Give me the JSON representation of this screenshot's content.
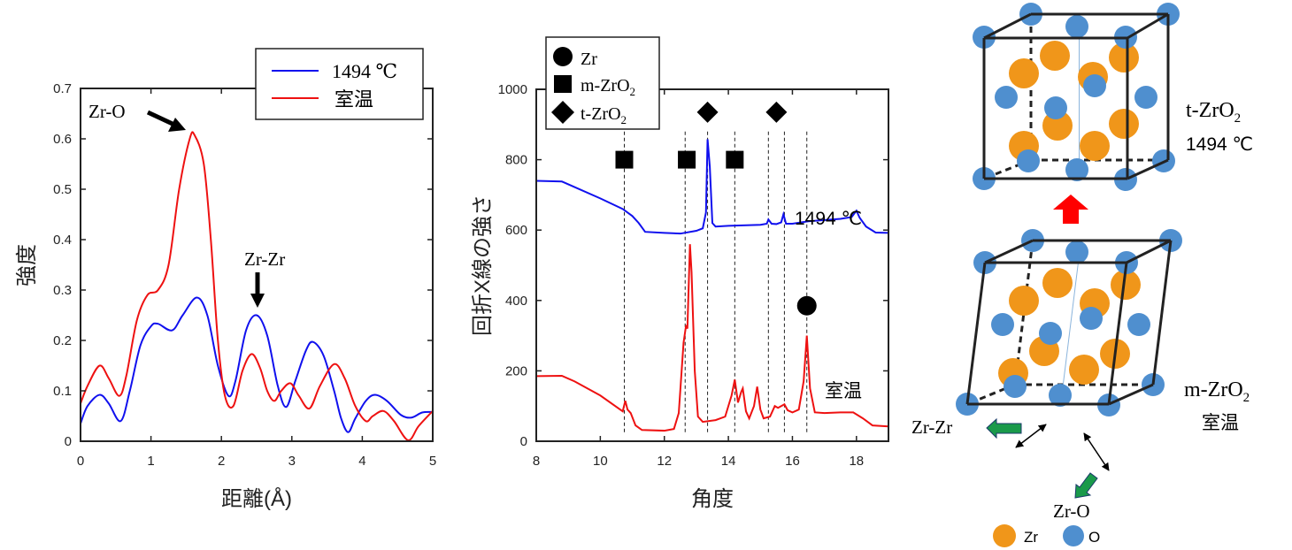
{
  "colors": {
    "high_temp": "#1010ee",
    "room_temp": "#ee1111",
    "zr_atom": "#f0961a",
    "o_atom": "#4f8fcf",
    "phase_arrow": "#ff0000",
    "shift_arrow": "#1a9a4a"
  },
  "chart_data": [
    {
      "type": "line",
      "xlabel": "距離(Å)",
      "ylabel": "強度",
      "xlim": [
        0,
        5
      ],
      "ylim": [
        0,
        0.7
      ],
      "xticks": [
        "0",
        "1",
        "2",
        "3",
        "4",
        "5"
      ],
      "yticks": [
        "0",
        "0.1",
        "0.2",
        "0.3",
        "0.4",
        "0.5",
        "0.6",
        "0.7"
      ],
      "grid": false,
      "legend": {
        "placement": "top-right",
        "entries": [
          "1494 ℃",
          "室温"
        ]
      },
      "annotations": [
        {
          "text": "Zr-O",
          "x": 1.62,
          "y": 0.607
        },
        {
          "text": "Zr-Zr",
          "x": 2.5,
          "y": 0.25
        }
      ],
      "series": [
        {
          "name": "1494 ℃",
          "color": "#1010ee",
          "x": [
            0,
            0.1,
            0.27,
            0.4,
            0.57,
            0.7,
            0.85,
            1.0,
            1.1,
            1.3,
            1.45,
            1.65,
            1.8,
            1.95,
            2.1,
            2.2,
            2.35,
            2.5,
            2.65,
            2.8,
            2.92,
            3.05,
            3.2,
            3.3,
            3.45,
            3.6,
            3.7,
            3.8,
            3.9,
            4.05,
            4.18,
            4.35,
            4.55,
            4.7,
            4.85,
            5
          ],
          "y": [
            0.035,
            0.07,
            0.092,
            0.075,
            0.04,
            0.1,
            0.19,
            0.228,
            0.233,
            0.22,
            0.25,
            0.285,
            0.25,
            0.15,
            0.09,
            0.12,
            0.22,
            0.25,
            0.21,
            0.11,
            0.068,
            0.12,
            0.18,
            0.197,
            0.17,
            0.1,
            0.045,
            0.018,
            0.045,
            0.08,
            0.092,
            0.08,
            0.052,
            0.047,
            0.057,
            0.058
          ]
        },
        {
          "name": "室温",
          "color": "#ee1111",
          "x": [
            0,
            0.1,
            0.27,
            0.4,
            0.55,
            0.65,
            0.8,
            0.95,
            1.1,
            1.25,
            1.4,
            1.55,
            1.62,
            1.75,
            1.85,
            1.95,
            2.05,
            2.17,
            2.3,
            2.43,
            2.55,
            2.65,
            2.75,
            2.85,
            2.98,
            3.1,
            3.25,
            3.4,
            3.6,
            3.75,
            3.9,
            4.05,
            4.15,
            4.3,
            4.45,
            4.65,
            4.8,
            5
          ],
          "y": [
            0.075,
            0.11,
            0.15,
            0.125,
            0.09,
            0.13,
            0.24,
            0.29,
            0.3,
            0.35,
            0.5,
            0.6,
            0.607,
            0.55,
            0.4,
            0.2,
            0.09,
            0.07,
            0.14,
            0.173,
            0.145,
            0.1,
            0.08,
            0.1,
            0.115,
            0.09,
            0.065,
            0.11,
            0.153,
            0.125,
            0.07,
            0.04,
            0.05,
            0.06,
            0.04,
            0.002,
            0.03,
            0.06
          ]
        }
      ]
    },
    {
      "type": "line",
      "xlabel": "角度",
      "ylabel": "回折X線の強さ",
      "xlim": [
        8,
        19
      ],
      "ylim": [
        0,
        1000
      ],
      "xticks": [
        "8",
        "10",
        "12",
        "14",
        "16",
        "18"
      ],
      "yticks": [
        "0",
        "200",
        "400",
        "600",
        "800",
        "1000"
      ],
      "grid": false,
      "legend": {
        "placement": "top-left",
        "entries": [
          {
            "marker": "circle",
            "text": "Zr",
            "sub": ""
          },
          {
            "marker": "square",
            "text": "m-ZrO",
            "sub": "2"
          },
          {
            "marker": "diamond",
            "text": "t-ZrO",
            "sub": "2"
          }
        ]
      },
      "series_labels": [
        {
          "text": "1494 ℃",
          "x": 17.6,
          "y": 680
        },
        {
          "text": "室温",
          "x": 17.9,
          "y": 150
        }
      ],
      "peak_markers": [
        {
          "marker": "square",
          "x": 10.75,
          "y": 800
        },
        {
          "marker": "square",
          "x": 12.7,
          "y": 800
        },
        {
          "marker": "square",
          "x": 14.2,
          "y": 800
        },
        {
          "marker": "diamond",
          "x": 13.35,
          "y": 935
        },
        {
          "marker": "diamond",
          "x": 15.5,
          "y": 935
        },
        {
          "marker": "circle",
          "x": 16.45,
          "y": 385
        }
      ],
      "peak_lines": [
        10.75,
        12.65,
        13.35,
        14.2,
        15.25,
        15.75,
        16.45
      ],
      "series": [
        {
          "name": "1494 ℃",
          "color": "#1010ee",
          "x": [
            8,
            8.8,
            9,
            10,
            10.7,
            11,
            11.2,
            11.4,
            12,
            12.5,
            13,
            13.2,
            13.3,
            13.35,
            13.42,
            13.5,
            13.6,
            14,
            15,
            15.2,
            15.25,
            15.35,
            15.5,
            15.65,
            15.72,
            15.8,
            16,
            16.5,
            17.5,
            17.85,
            18,
            18.1,
            18.3,
            18.6,
            19
          ],
          "y": [
            740,
            738,
            730,
            690,
            660,
            640,
            620,
            595,
            592,
            590,
            598,
            605,
            650,
            858,
            780,
            620,
            610,
            612,
            615,
            618,
            630,
            618,
            617,
            622,
            645,
            618,
            618,
            625,
            632,
            637,
            655,
            635,
            610,
            593,
            592
          ]
        },
        {
          "name": "室温",
          "color": "#ee1111",
          "x": [
            8,
            8.8,
            9.2,
            10,
            10.7,
            10.78,
            10.85,
            10.95,
            11.1,
            11.3,
            12,
            12.3,
            12.45,
            12.6,
            12.68,
            12.72,
            12.8,
            12.85,
            12.95,
            13.05,
            13.2,
            13.6,
            13.9,
            14.1,
            14.2,
            14.3,
            14.4,
            14.45,
            14.55,
            14.65,
            14.8,
            14.9,
            15.0,
            15.1,
            15.3,
            15.45,
            15.55,
            15.75,
            15.85,
            16.0,
            16.2,
            16.35,
            16.45,
            16.55,
            16.7,
            17,
            17.5,
            17.9,
            18.2,
            18.5,
            19
          ],
          "y": [
            185,
            186,
            170,
            130,
            85,
            115,
            90,
            80,
            45,
            32,
            30,
            35,
            80,
            280,
            330,
            320,
            560,
            480,
            200,
            70,
            55,
            60,
            70,
            130,
            175,
            110,
            140,
            150,
            85,
            65,
            100,
            155,
            90,
            65,
            70,
            100,
            95,
            105,
            88,
            82,
            90,
            170,
            300,
            150,
            82,
            80,
            82,
            82,
            65,
            45,
            42
          ]
        }
      ]
    }
  ],
  "diagram": {
    "high_phase": {
      "text": "t-ZrO",
      "sub": "2",
      "temp": "1494 ℃"
    },
    "low_phase": {
      "text": "m-ZrO",
      "sub": "2",
      "temp": "室温"
    },
    "bond_labels": {
      "zr_zr": "Zr-Zr",
      "zr_o": "Zr-O"
    },
    "legend": {
      "zr": "Zr",
      "o": "O"
    }
  }
}
